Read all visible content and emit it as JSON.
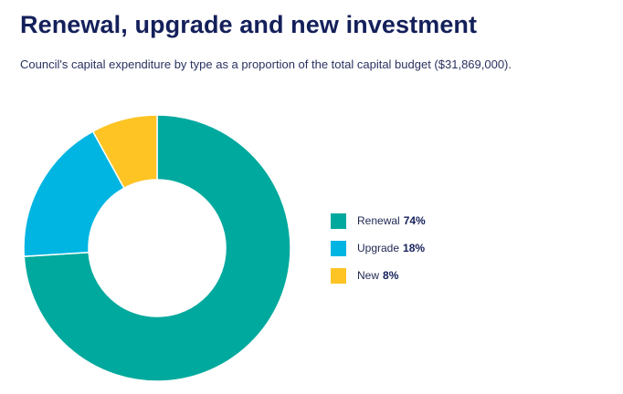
{
  "header": {
    "title": "Renewal, upgrade and new investment",
    "subtitle": "Council's capital expenditure by type as a proportion of the total capital budget ($31,869,000)."
  },
  "chart_data": {
    "type": "pie",
    "donut": true,
    "title": "Renewal, upgrade and new investment",
    "legend_position": "right",
    "series": [
      {
        "name": "Renewal",
        "value": 74,
        "label": "74%",
        "color": "#00a99d"
      },
      {
        "name": "Upgrade",
        "value": 18,
        "label": "18%",
        "color": "#00b5e2"
      },
      {
        "name": "New",
        "value": 8,
        "label": "8%",
        "color": "#fdc424"
      }
    ]
  }
}
